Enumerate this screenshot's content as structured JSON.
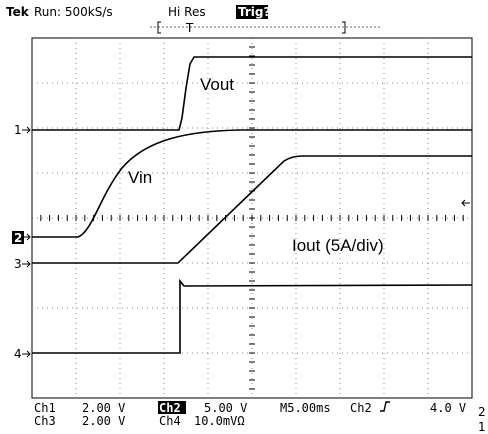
{
  "header": {
    "brand": "Tek",
    "status": "Run: 500kS/s",
    "mode": "Hi Res",
    "trigger_status": "Trig?",
    "trigger_marker": "T"
  },
  "channel_markers": [
    "1",
    "2",
    "3",
    "4"
  ],
  "trace_labels": {
    "vout": "Vout",
    "vin": "Vin",
    "iout": "Iout (5A/div)"
  },
  "readout": {
    "row1": {
      "ch_a": "Ch1",
      "scale_a": "2.00 V",
      "ch_b": "Ch2",
      "scale_b": "5.00 V",
      "timebase": "M5.00ms",
      "trig_source": "Ch2",
      "trig_level": "4.0 V"
    },
    "row2": {
      "ch_a": "Ch3",
      "scale_a": "2.00 V",
      "ch_b": "Ch4",
      "scale_b": "10.0mVΩ"
    }
  },
  "side_labels": [
    "2",
    "1"
  ]
}
